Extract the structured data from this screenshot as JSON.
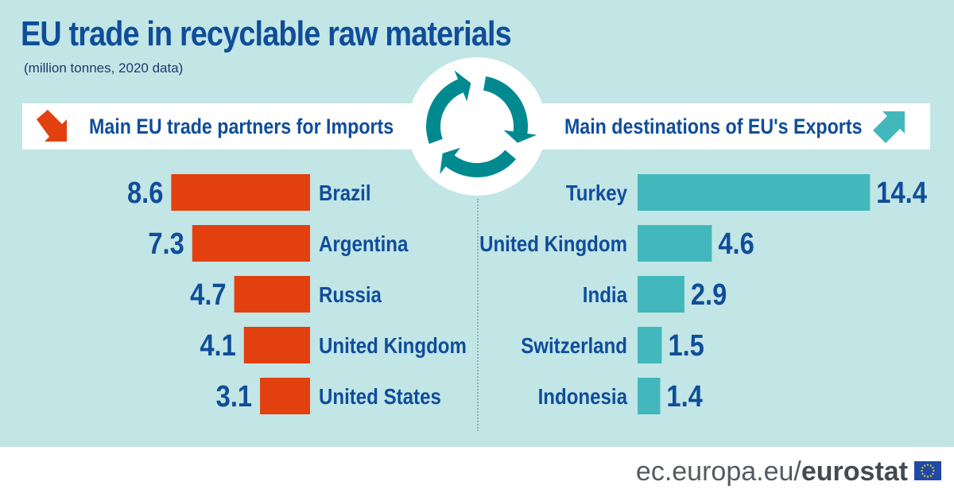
{
  "header": {
    "title": "EU trade in recyclable raw materials",
    "subtitle": "(million tonnes, 2020 data)"
  },
  "imports": {
    "label": "Main EU trade partners for Imports",
    "color": "#e2400f",
    "icon": "down-right-arrow-icon"
  },
  "exports": {
    "label": "Main destinations of EU's Exports",
    "color": "#42b8bc",
    "icon": "up-right-arrow-icon"
  },
  "cycle_icon": {
    "name": "recycle-cycle-icon",
    "color": "#008a90"
  },
  "chart_data": [
    {
      "type": "bar",
      "series": [
        {
          "name": "Main EU trade partners for Imports",
          "categories": [
            "Brazil",
            "Argentina",
            "Russia",
            "United Kingdom",
            "United States"
          ],
          "values": [
            8.6,
            7.3,
            4.7,
            4.1,
            3.1
          ]
        }
      ],
      "categories": [
        "Brazil",
        "Argentina",
        "Russia",
        "United Kingdom",
        "United States"
      ],
      "values": [
        8.6,
        7.3,
        4.7,
        4.1,
        3.1
      ],
      "orientation": "horizontal",
      "direction": "leftward",
      "unit": "million tonnes",
      "color": "#e2400f"
    },
    {
      "type": "bar",
      "series": [
        {
          "name": "Main destinations of EU's Exports",
          "categories": [
            "Turkey",
            "United Kingdom",
            "India",
            "Switzerland",
            "Indonesia"
          ],
          "values": [
            14.4,
            4.6,
            2.9,
            1.5,
            1.4
          ]
        }
      ],
      "categories": [
        "Turkey",
        "United Kingdom",
        "India",
        "Switzerland",
        "Indonesia"
      ],
      "values": [
        14.4,
        4.6,
        2.9,
        1.5,
        1.4
      ],
      "orientation": "horizontal",
      "direction": "rightward",
      "unit": "million tonnes",
      "color": "#42b8bc"
    }
  ],
  "footer": {
    "site": "ec.europa.eu/",
    "brand": "eurostat",
    "flag_icon": "eu-flag-icon"
  }
}
